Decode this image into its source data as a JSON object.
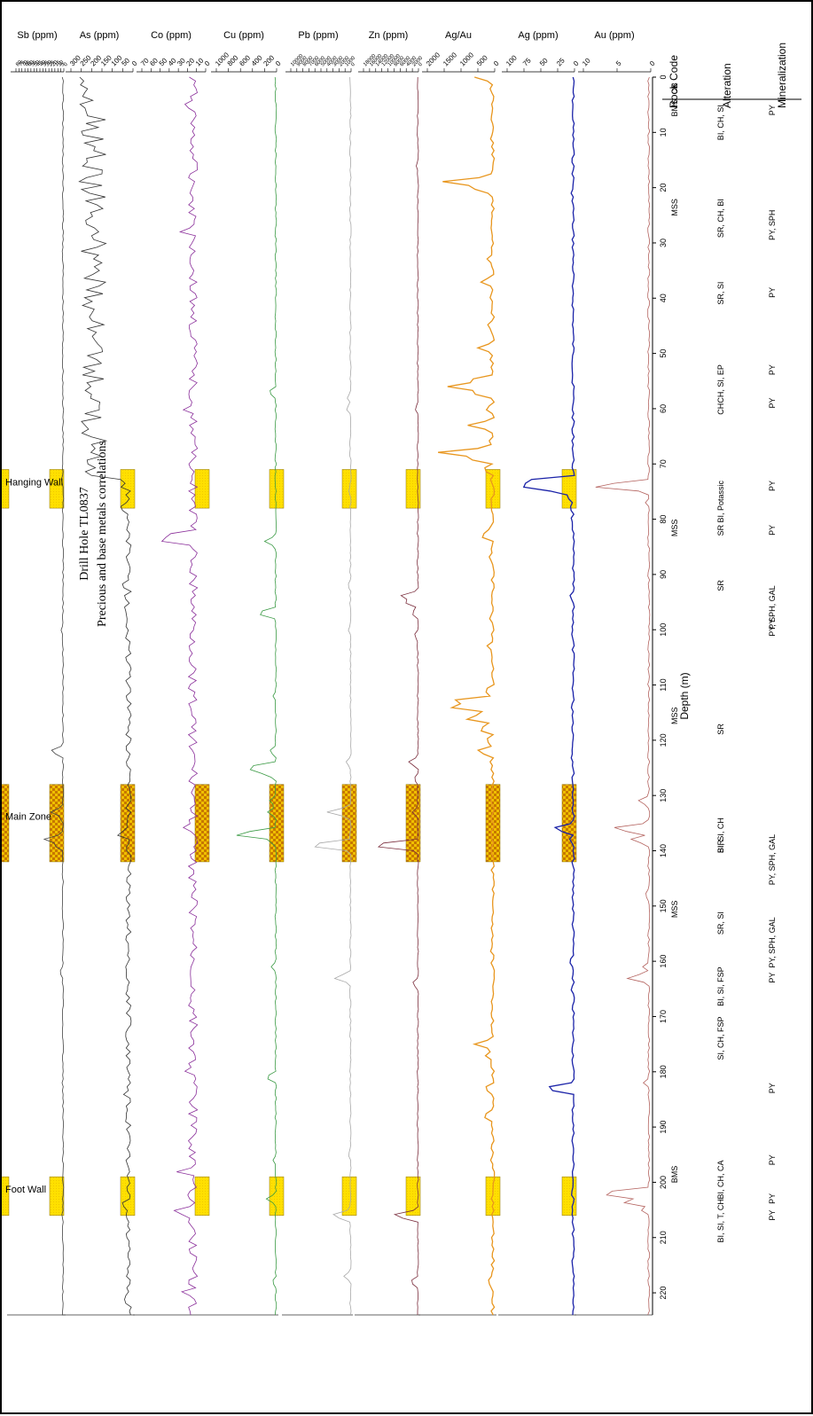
{
  "figure": {
    "title_line1": "Drill Hole TL0837",
    "title_line2": "Precious and base metals correlations"
  },
  "chart_data": [
    {
      "type": "table",
      "name_hint": "logs",
      "ylabel": "Depth (m)",
      "depth_ticks": [
        0,
        10,
        20,
        30,
        40,
        50,
        60,
        70,
        80,
        90,
        100,
        110,
        120,
        130,
        140,
        150,
        160,
        170,
        180,
        190,
        200,
        210,
        220
      ],
      "ylim": [
        0,
        224
      ],
      "column_headers": [
        "Rock Code",
        "Alteration",
        "Mineralization"
      ],
      "rock_code": [
        {
          "depth": 1,
          "text": "OB"
        },
        {
          "depth": 4,
          "text": "BMS"
        },
        {
          "depth": 22,
          "text": "MSS"
        },
        {
          "depth": 80,
          "text": "MSS"
        },
        {
          "depth": 114,
          "text": "MSS"
        },
        {
          "depth": 149,
          "text": "MSS"
        },
        {
          "depth": 197,
          "text": "BMS"
        }
      ],
      "alteration": [
        {
          "depth": 5,
          "text": "BI, CH, SI"
        },
        {
          "depth": 22,
          "text": "SR, CH, BI"
        },
        {
          "depth": 37,
          "text": "SR, SI"
        },
        {
          "depth": 52,
          "text": "CH, SI, EP"
        },
        {
          "depth": 59,
          "text": "CH"
        },
        {
          "depth": 73,
          "text": "BI, Potassic"
        },
        {
          "depth": 81,
          "text": "SR"
        },
        {
          "depth": 91,
          "text": "SR"
        },
        {
          "depth": 117,
          "text": "SR"
        },
        {
          "depth": 134,
          "text": "BI, SI, CH"
        },
        {
          "depth": 138,
          "text": "SIR"
        },
        {
          "depth": 151,
          "text": "SR, SI"
        },
        {
          "depth": 161,
          "text": "BI, SI, FSP"
        },
        {
          "depth": 170,
          "text": "SI, CH, FSP"
        },
        {
          "depth": 196,
          "text": "BI, CH, CA"
        },
        {
          "depth": 203,
          "text": "BI, SI, T, CH"
        }
      ],
      "mineralization": [
        {
          "depth": 5,
          "text": "PY"
        },
        {
          "depth": 24,
          "text": "PY, SPH"
        },
        {
          "depth": 38,
          "text": "PY"
        },
        {
          "depth": 52,
          "text": "PY"
        },
        {
          "depth": 58,
          "text": "PY"
        },
        {
          "depth": 73,
          "text": "PY"
        },
        {
          "depth": 81,
          "text": "PY"
        },
        {
          "depth": 92,
          "text": "PY, SPH, GAL"
        },
        {
          "depth": 98,
          "text": "PY"
        },
        {
          "depth": 137,
          "text": "PY, SPH, GAL"
        },
        {
          "depth": 152,
          "text": "PY, SPH, GAL"
        },
        {
          "depth": 162,
          "text": "PY"
        },
        {
          "depth": 182,
          "text": "PY"
        },
        {
          "depth": 195,
          "text": "PY"
        },
        {
          "depth": 202,
          "text": "PY"
        },
        {
          "depth": 205,
          "text": "PY"
        }
      ]
    },
    {
      "type": "line",
      "xlabel": "Depth (m)",
      "zones": [
        {
          "name": "Hanging Wall",
          "from": 71,
          "to": 78,
          "pattern": "dots"
        },
        {
          "name": "Main Zone",
          "from": 128,
          "to": 142,
          "pattern": "check"
        },
        {
          "name": "Foot Wall",
          "from": 199,
          "to": 206,
          "pattern": "dots"
        }
      ],
      "series": [
        {
          "name": "Au (ppm)",
          "color": "#b4635f",
          "ylim": [
            0,
            10
          ],
          "ticks": [
            0,
            5,
            10
          ],
          "baseline": 0.3,
          "noise": 0.15,
          "seed": 3,
          "points": [
            [
              74,
              10
            ],
            [
              77,
              0.8
            ],
            [
              90,
              0.6
            ],
            [
              92,
              0.5
            ],
            [
              125,
              0.6
            ],
            [
              131,
              2
            ],
            [
              136,
              6.6
            ],
            [
              138,
              3.2
            ],
            [
              148,
              1
            ],
            [
              155,
              0.5
            ],
            [
              161,
              1.2
            ],
            [
              163,
              3.8
            ],
            [
              182,
              1.1
            ],
            [
              202,
              9
            ],
            [
              203.5,
              4.8
            ],
            [
              205,
              1.5
            ]
          ]
        },
        {
          "name": "Ag (ppm)",
          "color": "#1a22a8",
          "ylim": [
            0,
            100
          ],
          "ticks": [
            0,
            25,
            50,
            75,
            100
          ],
          "baseline": 2,
          "noise": 1.8,
          "seed": 7,
          "points": [
            [
              6,
              4
            ],
            [
              21,
              5
            ],
            [
              27,
              4
            ],
            [
              38,
              4
            ],
            [
              55,
              5
            ],
            [
              60,
              4
            ],
            [
              64,
              5
            ],
            [
              73.2,
              100
            ],
            [
              73.6,
              78
            ],
            [
              74,
              92
            ],
            [
              74.4,
              60
            ],
            [
              74.8,
              40
            ],
            [
              76,
              12
            ],
            [
              78,
              8
            ],
            [
              80,
              6
            ],
            [
              94,
              8
            ],
            [
              101,
              5
            ],
            [
              114,
              5
            ],
            [
              123,
              6
            ],
            [
              127,
              5
            ],
            [
              136,
              35
            ],
            [
              138,
              8
            ],
            [
              160,
              9
            ],
            [
              165,
              6
            ],
            [
              183,
              51
            ],
            [
              202,
              6
            ],
            [
              206,
              4
            ]
          ]
        },
        {
          "name": "Ag/Au",
          "color": "#e8961e",
          "ylim": [
            0,
            2000
          ],
          "ticks": [
            0,
            500,
            1000,
            1500,
            2000
          ],
          "tick_labels": [
            "0",
            "500",
            "1000",
            "1500",
            "2000"
          ],
          "baseline": 60,
          "noise": 50,
          "seed": 11,
          "points": [
            [
              0,
              600
            ],
            [
              2,
              150
            ],
            [
              6,
              100
            ],
            [
              11,
              150
            ],
            [
              18,
              200
            ],
            [
              19,
              1700
            ],
            [
              20,
              800
            ],
            [
              21,
              200
            ],
            [
              27,
              150
            ],
            [
              33,
              250
            ],
            [
              37,
              450
            ],
            [
              40,
              150
            ],
            [
              45,
              250
            ],
            [
              49,
              500
            ],
            [
              51,
              150
            ],
            [
              55,
              1000
            ],
            [
              56,
              1400
            ],
            [
              57,
              900
            ],
            [
              60,
              300
            ],
            [
              63,
              800
            ],
            [
              66,
              200
            ],
            [
              68,
              1850
            ],
            [
              69,
              900
            ],
            [
              71,
              400
            ],
            [
              73,
              150
            ],
            [
              82,
              200
            ],
            [
              83,
              500
            ],
            [
              87,
              200
            ],
            [
              98,
              150
            ],
            [
              103,
              250
            ],
            [
              111,
              350
            ],
            [
              113,
              1600
            ],
            [
              114,
              1400
            ],
            [
              116,
              1000
            ],
            [
              118,
              550
            ],
            [
              120,
              300
            ],
            [
              122,
              600
            ],
            [
              124,
              150
            ],
            [
              134,
              120
            ],
            [
              158,
              150
            ],
            [
              170,
              100
            ],
            [
              175,
              600
            ],
            [
              177,
              300
            ],
            [
              183,
              350
            ],
            [
              188,
              400
            ],
            [
              191,
              100
            ],
            [
              196,
              120
            ],
            [
              218,
              250
            ],
            [
              221,
              100
            ]
          ]
        },
        {
          "name": "Zn (ppm)",
          "color": "#7a2d3c",
          "ylim": [
            0,
            18000
          ],
          "ticks": [
            0,
            2000,
            4000,
            6000,
            8000,
            10000,
            12000,
            14000,
            16000,
            18000
          ],
          "baseline": 200,
          "noise": 200,
          "seed": 19,
          "points": [
            [
              16,
              800
            ],
            [
              60,
              1200
            ],
            [
              71,
              400
            ],
            [
              94,
              7000
            ],
            [
              95,
              5000
            ],
            [
              97,
              2500
            ],
            [
              101,
              1500
            ],
            [
              124,
              3500
            ],
            [
              127,
              1600
            ],
            [
              133,
              2000
            ],
            [
              139,
              18000
            ],
            [
              164,
              2200
            ],
            [
              206,
              9500
            ],
            [
              218,
              3000
            ]
          ]
        },
        {
          "name": "Pb (ppm)",
          "color": "#a8a8a8",
          "ylim": [
            0,
            10000
          ],
          "ticks": [
            0,
            1000,
            2000,
            3000,
            4000,
            5000,
            6000,
            7000,
            8000,
            9000,
            10000
          ],
          "baseline": 100,
          "noise": 120,
          "seed": 23,
          "points": [
            [
              24,
              300
            ],
            [
              58,
              700
            ],
            [
              60,
              900
            ],
            [
              75,
              400
            ],
            [
              92,
              600
            ],
            [
              100,
              500
            ],
            [
              124,
              900
            ],
            [
              133,
              4000
            ],
            [
              139,
              8200
            ],
            [
              163,
              3000
            ],
            [
              195,
              500
            ],
            [
              206,
              3600
            ],
            [
              217,
              1200
            ]
          ]
        },
        {
          "name": "Cu (ppm)",
          "color": "#3a9a44",
          "ylim": [
            0,
            1000
          ],
          "ticks": [
            0,
            200,
            400,
            600,
            800,
            1000
          ],
          "baseline": 15,
          "noise": 12,
          "seed": 29,
          "points": [
            [
              57,
              150
            ],
            [
              84,
              200
            ],
            [
              97,
              370
            ],
            [
              112,
              60
            ],
            [
              122,
              130
            ],
            [
              125,
              600
            ],
            [
              126,
              250
            ],
            [
              131,
              130
            ],
            [
              133,
              150
            ],
            [
              137,
              810
            ],
            [
              138,
              180
            ],
            [
              161,
              90
            ],
            [
              181,
              200
            ],
            [
              196,
              60
            ],
            [
              203,
              170
            ],
            [
              218,
              80
            ]
          ]
        },
        {
          "name": "Co (ppm)",
          "color": "#8a2e9a",
          "ylim": [
            0,
            70
          ],
          "ticks": [
            0,
            10,
            20,
            30,
            40,
            50,
            60,
            70
          ],
          "baseline": 14,
          "noise": 5,
          "seed": 31,
          "points": [
            [
              0,
              18
            ],
            [
              5,
              25
            ],
            [
              28,
              28
            ],
            [
              60,
              30
            ],
            [
              83,
              60
            ],
            [
              84,
              48
            ],
            [
              85,
              22
            ],
            [
              121,
              20
            ],
            [
              136,
              30
            ],
            [
              148,
              20
            ],
            [
              176,
              12
            ],
            [
              180,
              25
            ],
            [
              198,
              35
            ],
            [
              202,
              27
            ],
            [
              205,
              38
            ],
            [
              206,
              32
            ],
            [
              210,
              15
            ],
            [
              216,
              12
            ],
            [
              220,
              32
            ]
          ]
        },
        {
          "name": "As (ppm)",
          "color": "#333333",
          "ylim": [
            0,
            300
          ],
          "ticks": [
            0,
            50,
            100,
            150,
            200,
            250,
            300
          ],
          "baseline": 22,
          "noise": 14,
          "seed": 37,
          "points": [
            [
              71,
              250
            ],
            [
              72,
              220
            ],
            [
              74,
              70
            ],
            [
              78,
              80
            ],
            [
              80,
              35
            ],
            [
              90,
              25
            ],
            [
              92,
              70
            ],
            [
              94,
              50
            ],
            [
              96,
              45
            ],
            [
              100,
              25
            ],
            [
              124,
              35
            ],
            [
              137,
              90
            ],
            [
              140,
              30
            ],
            [
              160,
              25
            ],
            [
              184,
              50
            ],
            [
              204,
              70
            ],
            [
              206,
              40
            ],
            [
              221,
              50
            ]
          ],
          "high_band": {
            "from": 0,
            "to": 72,
            "min": 130,
            "max": 260
          }
        },
        {
          "name": "Sb (ppm)",
          "color": "#444444",
          "ylim": [
            0,
            80
          ],
          "ticks": [
            0,
            5,
            10,
            15,
            20,
            25,
            30,
            35,
            40,
            45,
            50,
            55,
            60,
            65,
            70,
            75,
            80
          ],
          "baseline": 1.5,
          "noise": 1.2,
          "seed": 41,
          "points": [
            [
              73,
              5
            ],
            [
              100,
              5
            ],
            [
              122,
              25
            ],
            [
              131,
              3
            ],
            [
              133,
              22
            ],
            [
              134,
              8
            ],
            [
              138,
              36
            ],
            [
              139,
              18
            ],
            [
              162,
              8
            ],
            [
              182,
              3
            ],
            [
              206,
              4
            ]
          ]
        }
      ]
    }
  ]
}
